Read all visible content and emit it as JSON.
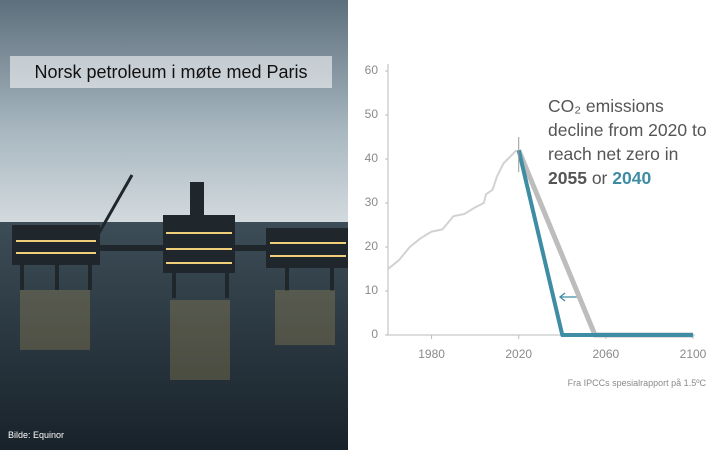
{
  "slide": {
    "title": "Norsk petroleum i møte med Paris",
    "photo_credit": "Bilde: Equinor",
    "source": "Fra IPCCs spesialrapport på 1.5ºC"
  },
  "chart_data": {
    "type": "line",
    "annotation": {
      "text": "CO₂ emissions decline from 2020 to reach net zero in",
      "highlight_1": "2055",
      "joiner": "or",
      "highlight_2": "2040"
    },
    "series": [
      {
        "color": "#d2d2d2",
        "width": 2,
        "x": [
          1960,
          1965,
          1970,
          1975,
          1980,
          1985,
          1990,
          1995,
          2000,
          2004,
          2005,
          2008,
          2010,
          2013,
          2015,
          2019
        ],
        "values": [
          15,
          17,
          20,
          22,
          23.5,
          24,
          27,
          27.5,
          29,
          30,
          32,
          33,
          36,
          39,
          40,
          42
        ]
      },
      {
        "color": "#bdbdbd",
        "width": 5,
        "x": [
          2020,
          2055,
          2100
        ],
        "values": [
          42,
          0,
          0
        ]
      },
      {
        "color": "#3f8ca5",
        "width": 4,
        "x": [
          2020,
          2040,
          2100
        ],
        "values": [
          42,
          0,
          0
        ]
      }
    ],
    "error_bar": {
      "x": 2020,
      "low": 37,
      "high": 45
    },
    "xlim": [
      1960,
      2100
    ],
    "xticks": [
      1980,
      2020,
      2060,
      2100
    ],
    "ylim": [
      0,
      60
    ],
    "yticks": [
      0,
      10,
      20,
      30,
      40,
      50,
      60
    ]
  }
}
